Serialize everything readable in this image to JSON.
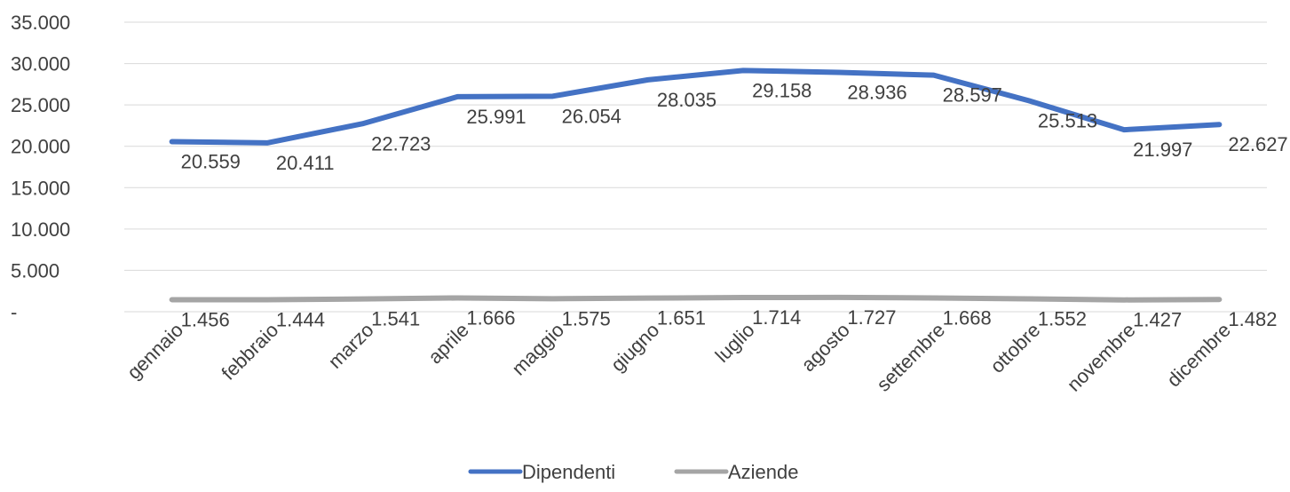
{
  "chart_data": {
    "type": "line",
    "title": "",
    "xlabel": "",
    "ylabel": "",
    "categories": [
      "gennaio",
      "febbraio",
      "marzo",
      "aprile",
      "maggio",
      "giugno",
      "luglio",
      "agosto",
      "settembre",
      "ottobre",
      "novembre",
      "dicembre"
    ],
    "ylim": [
      0,
      35000
    ],
    "yticks": [
      0,
      5000,
      10000,
      15000,
      20000,
      25000,
      30000,
      35000
    ],
    "ytick_labels": [
      "-",
      "5.000",
      "10.000",
      "15.000",
      "20.000",
      "25.000",
      "30.000",
      "35.000"
    ],
    "grid": true,
    "legend_position": "bottom",
    "series": [
      {
        "name": "Dipendenti",
        "color": "#4472C4",
        "values": [
          20559,
          20411,
          22723,
          25991,
          26054,
          28035,
          29158,
          28936,
          28597,
          25513,
          21997,
          22627
        ],
        "labels": [
          "20.559",
          "20.411",
          "22.723",
          "25.991",
          "26.054",
          "28.035",
          "29.158",
          "28.936",
          "28.597",
          "25.513",
          "21.997",
          "22.627"
        ]
      },
      {
        "name": "Aziende",
        "color": "#A5A5A5",
        "values": [
          1456,
          1444,
          1541,
          1666,
          1575,
          1651,
          1714,
          1727,
          1668,
          1552,
          1427,
          1482
        ],
        "labels": [
          "1.456",
          "1.444",
          "1.541",
          "1.666",
          "1.575",
          "1.651",
          "1.714",
          "1.727",
          "1.668",
          "1.552",
          "1.427",
          "1.482"
        ]
      }
    ]
  }
}
